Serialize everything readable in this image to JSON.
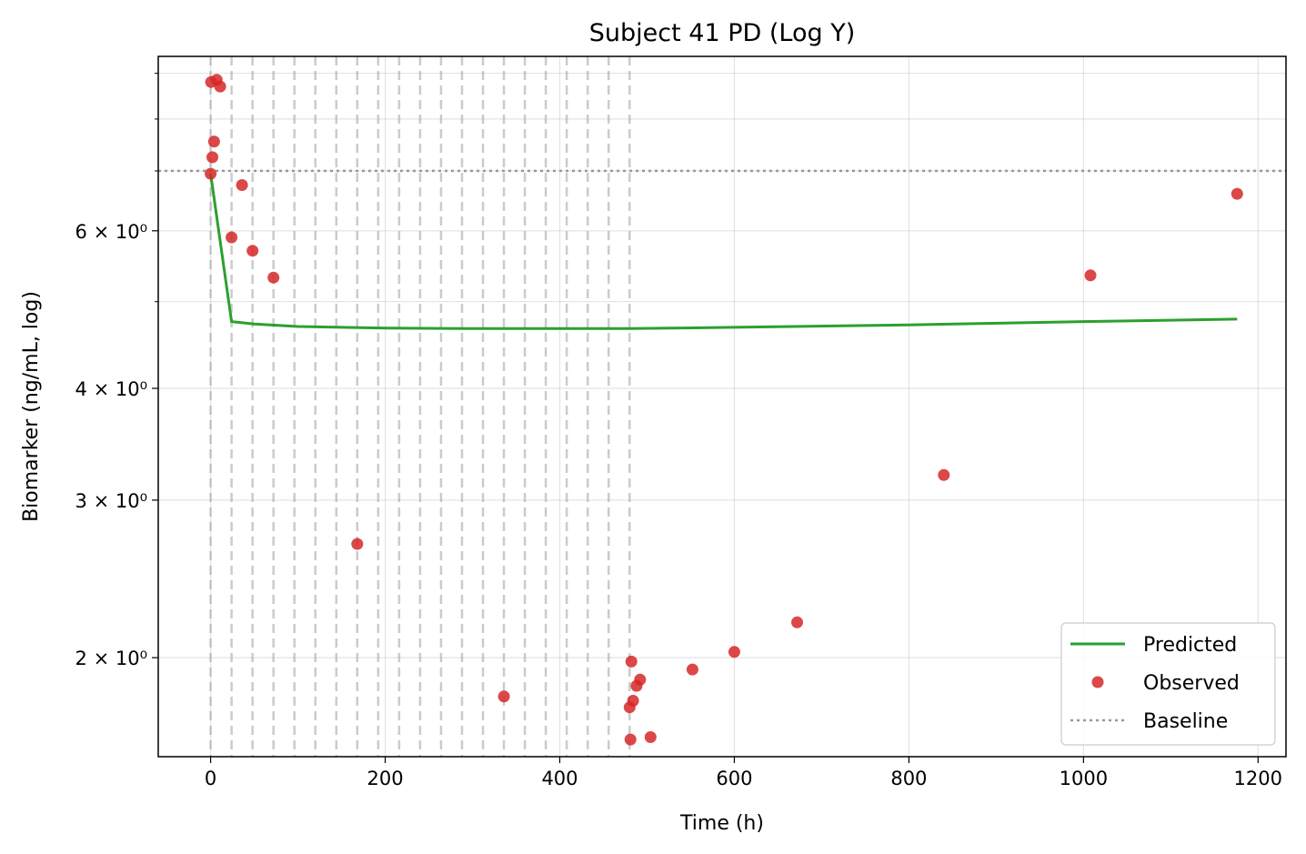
{
  "chart_data": {
    "type": "scatter",
    "title": "Subject 41 PD (Log Y)",
    "xlabel": "Time (h)",
    "ylabel": "Biomarker (ng/mL, log)",
    "xlim": [
      -60,
      1232
    ],
    "ylim": [
      1.55,
      9.4
    ],
    "yscale": "log",
    "grid": true,
    "legend_position": "bottom-right",
    "x_ticks": [
      {
        "value": 0,
        "label": "0"
      },
      {
        "value": 200,
        "label": "200"
      },
      {
        "value": 400,
        "label": "400"
      },
      {
        "value": 600,
        "label": "600"
      },
      {
        "value": 800,
        "label": "800"
      },
      {
        "value": 1000,
        "label": "1000"
      },
      {
        "value": 1200,
        "label": "1200"
      }
    ],
    "y_ticks": [
      {
        "value": 2,
        "label": "2 × 10⁰"
      },
      {
        "value": 3,
        "label": "3 × 10⁰"
      },
      {
        "value": 4,
        "label": "4 × 10⁰"
      },
      {
        "value": 6,
        "label": "6 × 10⁰"
      }
    ],
    "y_minor_ticks": [
      5,
      7,
      8,
      9
    ],
    "dose_times": [
      0,
      24,
      48,
      72,
      96,
      120,
      144,
      168,
      192,
      216,
      240,
      264,
      288,
      312,
      336,
      360,
      384,
      408,
      432,
      456,
      480
    ],
    "baseline": 7.0,
    "series": [
      {
        "name": "Predicted",
        "kind": "line",
        "color": "#2ca02c",
        "x": [
          0,
          24,
          50,
          100,
          200,
          300,
          400,
          480,
          600,
          800,
          1000,
          1176
        ],
        "y": [
          6.95,
          4.75,
          4.72,
          4.69,
          4.67,
          4.665,
          4.665,
          4.665,
          4.68,
          4.71,
          4.75,
          4.78
        ]
      },
      {
        "name": "Observed",
        "kind": "scatter",
        "color": "#d62728",
        "x": [
          0,
          0.5,
          2,
          4,
          7,
          11,
          24,
          36,
          48,
          72,
          168,
          336,
          480,
          481,
          482,
          484,
          488,
          492,
          504,
          552,
          600,
          672,
          840,
          1008,
          1176
        ],
        "y": [
          6.95,
          8.8,
          7.25,
          7.55,
          8.85,
          8.7,
          5.9,
          6.75,
          5.7,
          5.32,
          2.68,
          1.81,
          1.76,
          1.62,
          1.98,
          1.79,
          1.86,
          1.89,
          1.63,
          1.94,
          2.03,
          2.19,
          3.2,
          5.35,
          6.6
        ]
      },
      {
        "name": "Baseline",
        "kind": "hline",
        "color": "#999999"
      }
    ]
  }
}
